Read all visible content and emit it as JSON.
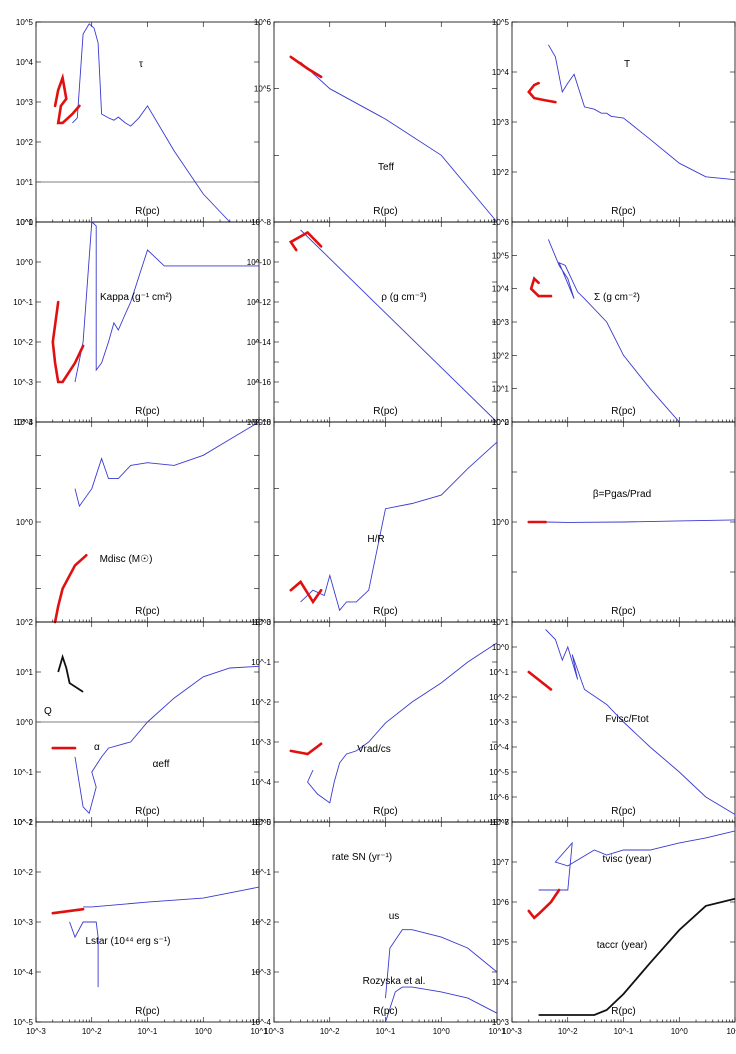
{
  "colors": {
    "model": "#3a3ad0",
    "inner": "#e01010",
    "alt": "#111111"
  },
  "chart_data": [
    {
      "type": "line",
      "panel": "tau",
      "title": "τ",
      "xlabel": "R(pc)",
      "xscale": "log",
      "yscale": "log",
      "ylim": [
        1,
        100000
      ],
      "ytick_labels": [
        "10^5",
        "10^4",
        "10^3",
        "10^2",
        "10^1",
        "10^0"
      ],
      "reference_line": 10,
      "series": [
        {
          "name": "model",
          "color": "blue",
          "x": [
            0.0045,
            0.0055,
            0.007,
            0.009,
            0.011,
            0.013,
            0.015,
            0.02,
            0.025,
            0.03,
            0.04,
            0.05,
            0.07,
            0.1,
            0.3,
            1,
            3
          ],
          "y": [
            300,
            400,
            50000,
            90000,
            70000,
            30000,
            500,
            400,
            350,
            420,
            300,
            250,
            400,
            800,
            60,
            5,
            1
          ]
        },
        {
          "name": "inner",
          "color": "red",
          "x": [
            0.0022,
            0.0025,
            0.003,
            0.0035,
            0.0028,
            0.0025,
            0.003,
            0.0045,
            0.006
          ],
          "y": [
            800,
            2000,
            4000,
            1200,
            800,
            300,
            300,
            500,
            800
          ]
        }
      ]
    },
    {
      "type": "line",
      "panel": "teff",
      "title": "Teff",
      "xlabel": "R(pc)",
      "xscale": "log",
      "yscale": "log",
      "ylim": [
        1000,
        1000000
      ],
      "ytick_labels": [
        "10^6",
        "10^5"
      ],
      "series": [
        {
          "name": "model",
          "color": "blue",
          "x": [
            0.003,
            0.01,
            0.1,
            1,
            10
          ],
          "y": [
            250000,
            100000,
            35000,
            10000,
            1000
          ]
        },
        {
          "name": "inner",
          "color": "red",
          "x": [
            0.002,
            0.004,
            0.007
          ],
          "y": [
            300000,
            200000,
            150000
          ]
        }
      ]
    },
    {
      "type": "line",
      "panel": "T",
      "title": "T",
      "xlabel": "R(pc)",
      "xscale": "log",
      "yscale": "log",
      "ylim": [
        10,
        100000
      ],
      "ytick_labels": [
        "10^5",
        "10^4",
        "10^3",
        "10^2"
      ],
      "series": [
        {
          "name": "model",
          "color": "blue",
          "x": [
            0.0045,
            0.006,
            0.008,
            0.01,
            0.013,
            0.02,
            0.03,
            0.04,
            0.05,
            0.06,
            0.1,
            0.3,
            1,
            3,
            10
          ],
          "y": [
            35000,
            20000,
            4000,
            6000,
            9000,
            2000,
            1800,
            1500,
            1500,
            1300,
            1200,
            450,
            150,
            80,
            70
          ]
        },
        {
          "name": "inner",
          "color": "red",
          "x": [
            0.003,
            0.0025,
            0.002,
            0.0025,
            0.004,
            0.006
          ],
          "y": [
            6000,
            5500,
            4000,
            3000,
            2700,
            2500
          ]
        }
      ]
    },
    {
      "type": "line",
      "panel": "kappa",
      "title": "Kappa (g⁻¹ cm²)",
      "xlabel": "R(pc)",
      "xscale": "log",
      "yscale": "log",
      "ylim": [
        0.0001,
        10
      ],
      "ytick_labels": [
        "10^1",
        "10^0",
        "10^-1",
        "10^-2",
        "10^-3",
        "10^-4"
      ],
      "series": [
        {
          "name": "model",
          "color": "blue",
          "x": [
            0.005,
            0.007,
            0.01,
            0.012,
            0.012,
            0.015,
            0.02,
            0.025,
            0.03,
            0.04,
            0.05,
            0.1,
            0.2,
            0.5,
            1,
            3,
            10
          ],
          "y": [
            0.001,
            0.01,
            10,
            8,
            0.002,
            0.003,
            0.01,
            0.03,
            0.02,
            0.05,
            0.1,
            2,
            0.8,
            0.8,
            0.8,
            0.8,
            0.8
          ]
        },
        {
          "name": "inner",
          "color": "red",
          "x": [
            0.0025,
            0.002,
            0.0022,
            0.0025,
            0.003,
            0.005,
            0.007
          ],
          "y": [
            0.1,
            0.01,
            0.003,
            0.001,
            0.001,
            0.003,
            0.008
          ]
        }
      ]
    },
    {
      "type": "line",
      "panel": "rho",
      "title": "ρ (g cm⁻³)",
      "xlabel": "R(pc)",
      "xscale": "log",
      "yscale": "log",
      "ylim": [
        1e-18,
        1e-08
      ],
      "ytick_labels": [
        "10^-8",
        "10^-10",
        "10^-12",
        "10^-14",
        "10^-16",
        "10^-18"
      ],
      "series": [
        {
          "name": "model",
          "color": "blue",
          "x": [
            0.003,
            10
          ],
          "y": [
            4e-09,
            1e-18
          ]
        },
        {
          "name": "inner",
          "color": "red",
          "x": [
            0.0025,
            0.002,
            0.004,
            0.007
          ],
          "y": [
            4e-10,
            1e-09,
            3e-09,
            6e-10
          ]
        }
      ]
    },
    {
      "type": "line",
      "panel": "sigma",
      "title": "Σ (g cm⁻²)",
      "xlabel": "R(pc)",
      "xscale": "log",
      "yscale": "log",
      "ylim": [
        1,
        1000000
      ],
      "ytick_labels": [
        "10^6",
        "10^5",
        "10^4",
        "10^3",
        "10^2",
        "10^1",
        "10^0"
      ],
      "series": [
        {
          "name": "model",
          "color": "blue",
          "x": [
            0.0045,
            0.007,
            0.01,
            0.013,
            0.007,
            0.009,
            0.015,
            0.02,
            0.05,
            0.1,
            0.3,
            1,
            2
          ],
          "y": [
            300000,
            50000,
            20000,
            5000,
            60000,
            50000,
            8000,
            5000,
            1000,
            100,
            10,
            1,
            0.5
          ]
        },
        {
          "name": "inner",
          "color": "red",
          "x": [
            0.003,
            0.0025,
            0.0022,
            0.003,
            0.0045,
            0.005
          ],
          "y": [
            15000,
            20000,
            10000,
            6000,
            6000,
            6000
          ]
        }
      ]
    },
    {
      "type": "line",
      "panel": "mdisc",
      "title": "Mdisc (M☉)",
      "xlabel": "R(pc)",
      "xscale": "log",
      "yscale": "log",
      "ylim": [
        0.001,
        1000
      ],
      "ytick_labels": [
        "10^3",
        "10^0"
      ],
      "series": [
        {
          "name": "model",
          "color": "blue",
          "x": [
            0.005,
            0.006,
            0.01,
            0.015,
            0.02,
            0.03,
            0.05,
            0.1,
            0.3,
            1,
            3,
            10
          ],
          "y": [
            10,
            3,
            10,
            80,
            20,
            20,
            50,
            60,
            50,
            100,
            300,
            1000
          ]
        },
        {
          "name": "inner",
          "color": "red",
          "x": [
            0.0022,
            0.0025,
            0.003,
            0.005,
            0.008
          ],
          "y": [
            0.001,
            0.003,
            0.01,
            0.05,
            0.1
          ]
        }
      ]
    },
    {
      "type": "line",
      "panel": "H/R",
      "title": "H/R",
      "xlabel": "R(pc)",
      "xscale": "log",
      "yscale": "log",
      "ylim": [
        0.001,
        1
      ],
      "ytick_labels": [
        "10^0",
        "10^-3"
      ],
      "series": [
        {
          "name": "model",
          "color": "blue",
          "x": [
            0.003,
            0.005,
            0.008,
            0.01,
            0.015,
            0.02,
            0.03,
            0.05,
            0.1,
            0.3,
            1,
            3,
            10
          ],
          "y": [
            0.002,
            0.003,
            0.0025,
            0.005,
            0.0015,
            0.002,
            0.002,
            0.003,
            0.05,
            0.06,
            0.08,
            0.2,
            0.5
          ]
        },
        {
          "name": "inner",
          "color": "red",
          "x": [
            0.002,
            0.003,
            0.005,
            0.007
          ],
          "y": [
            0.003,
            0.004,
            0.002,
            0.003
          ]
        }
      ]
    },
    {
      "type": "line",
      "panel": "beta",
      "title": "β=Pgas/Prad",
      "xlabel": "R(pc)",
      "xscale": "log",
      "yscale": "log",
      "ylim": [
        0.01,
        100
      ],
      "ytick_labels": [
        "10^2",
        "10^0"
      ],
      "series": [
        {
          "name": "model",
          "color": "blue",
          "x": [
            0.004,
            0.01,
            0.1,
            1,
            10
          ],
          "y": [
            1,
            0.98,
            1,
            1.05,
            1.1
          ]
        },
        {
          "name": "inner",
          "color": "red",
          "x": [
            0.002,
            0.004
          ],
          "y": [
            1,
            1
          ]
        }
      ]
    },
    {
      "type": "line",
      "panel": "Q",
      "title": "αeff",
      "xlabel": "R(pc)",
      "xscale": "log",
      "yscale": "log",
      "ylim": [
        0.01,
        100
      ],
      "ytick_labels": [
        "10^2",
        "10^1",
        "10^0",
        "10^-1",
        "10^-2"
      ],
      "reference_line": 1,
      "annotations": [
        "Q",
        "α"
      ],
      "series": [
        {
          "name": "alpha_eff",
          "color": "blue",
          "x": [
            0.005,
            0.007,
            0.009,
            0.012,
            0.01,
            0.015,
            0.02,
            0.05,
            0.1,
            0.3,
            1,
            3,
            10
          ],
          "y": [
            0.2,
            0.02,
            0.015,
            0.05,
            0.1,
            0.2,
            0.3,
            0.4,
            1,
            3,
            8,
            12,
            13
          ]
        },
        {
          "name": "alpha",
          "color": "red",
          "x": [
            0.002,
            0.005
          ],
          "y": [
            0.3,
            0.3
          ]
        },
        {
          "name": "Q",
          "color": "black",
          "x": [
            0.0025,
            0.003,
            0.0035,
            0.004,
            0.007
          ],
          "y": [
            10,
            20,
            12,
            6,
            4
          ]
        }
      ]
    },
    {
      "type": "line",
      "panel": "vrad",
      "title": "Vrad/cs",
      "xlabel": "R(pc)",
      "xscale": "log",
      "yscale": "log",
      "ylim": [
        1e-05,
        1
      ],
      "ytick_labels": [
        "10^0",
        "10^-1",
        "10^-2",
        "10^-3",
        "10^-4",
        "10^-5"
      ],
      "series": [
        {
          "name": "model",
          "color": "blue",
          "x": [
            0.005,
            0.004,
            0.006,
            0.01,
            0.012,
            0.015,
            0.02,
            0.03,
            0.05,
            0.1,
            0.3,
            1,
            3,
            10
          ],
          "y": [
            0.0002,
            0.0001,
            5e-05,
            3e-05,
            0.0001,
            0.0003,
            0.0005,
            0.0006,
            0.001,
            0.003,
            0.01,
            0.03,
            0.1,
            0.3
          ]
        },
        {
          "name": "inner",
          "color": "red",
          "x": [
            0.002,
            0.004,
            0.007
          ],
          "y": [
            0.0006,
            0.0005,
            0.0009
          ]
        }
      ]
    },
    {
      "type": "line",
      "panel": "fvisc",
      "title": "Fvisc/Ftot",
      "xlabel": "R(pc)",
      "xscale": "log",
      "yscale": "log",
      "ylim": [
        1e-07,
        10
      ],
      "ytick_labels": [
        "10^1",
        "10^0",
        "10^-1",
        "10^-2",
        "10^-3",
        "10^-4",
        "10^-5",
        "10^-6",
        "10^-7"
      ],
      "series": [
        {
          "name": "model",
          "color": "blue",
          "x": [
            0.004,
            0.006,
            0.008,
            0.01,
            0.015,
            0.012,
            0.02,
            0.05,
            0.1,
            0.3,
            1,
            3,
            10
          ],
          "y": [
            5,
            2,
            0.3,
            1,
            0.05,
            0.5,
            0.02,
            0.005,
            0.001,
            0.0001,
            1e-05,
            1e-06,
            2e-07
          ]
        },
        {
          "name": "inner",
          "color": "red",
          "x": [
            0.002,
            0.005
          ],
          "y": [
            0.1,
            0.02
          ]
        }
      ]
    },
    {
      "type": "line",
      "panel": "lstar",
      "title": "Lstar (10⁴⁴ erg s⁻¹)",
      "xlabel": "R(pc)",
      "xscale": "log",
      "yscale": "log",
      "ylim": [
        1e-05,
        0.1
      ],
      "ytick_labels": [
        "10^-1",
        "10^-2",
        "10^-3",
        "10^-4",
        "10^-5"
      ],
      "series": [
        {
          "name": "model",
          "color": "blue",
          "x": [
            0.007,
            0.01,
            0.1,
            1,
            10
          ],
          "y": [
            0.002,
            0.002,
            0.0025,
            0.003,
            0.005
          ]
        },
        {
          "name": "dip",
          "color": "blue",
          "x": [
            0.004,
            0.005,
            0.007,
            0.012,
            0.013,
            0.013
          ],
          "y": [
            0.001,
            0.0005,
            0.001,
            0.001,
            0.0005,
            5e-05
          ]
        },
        {
          "name": "inner",
          "color": "red",
          "x": [
            0.002,
            0.007
          ],
          "y": [
            0.0015,
            0.0018
          ]
        }
      ]
    },
    {
      "type": "line",
      "panel": "sn",
      "title": "rate SN (yr⁻¹)",
      "xlabel": "R(pc)",
      "xscale": "log",
      "yscale": "log",
      "ylim": [
        0.0001,
        1
      ],
      "ytick_labels": [
        "10^0",
        "10^-1",
        "10^-2",
        "10^-3",
        "10^-4"
      ],
      "annotations": [
        "us",
        "Rozyska et al."
      ],
      "series": [
        {
          "name": "us",
          "color": "blue",
          "x": [
            0.1,
            0.12,
            0.2,
            0.3,
            1,
            3,
            10
          ],
          "y": [
            0.0003,
            0.003,
            0.007,
            0.007,
            0.005,
            0.003,
            0.001
          ]
        },
        {
          "name": "Rozyska et al.",
          "color": "blue",
          "x": [
            0.1,
            0.15,
            0.2,
            0.3,
            1,
            3,
            10
          ],
          "y": [
            0.0001,
            0.0004,
            0.0005,
            0.0005,
            0.0004,
            0.0003,
            0.00015
          ]
        }
      ]
    },
    {
      "type": "line",
      "panel": "times",
      "title": "tvisc (year)",
      "xlabel": "R(pc)",
      "xscale": "log",
      "yscale": "log",
      "ylim": [
        1000,
        100000000
      ],
      "ytick_labels": [
        "10^8",
        "10^7",
        "10^6",
        "10^5",
        "10^4",
        "10^3"
      ],
      "xtick_labels": [
        "10^-3",
        "10^-2",
        "10^-1",
        "10^0",
        "10^1"
      ],
      "annotations": [
        "tvisc (year)",
        "taccr (year)"
      ],
      "series": [
        {
          "name": "tvisc",
          "color": "blue",
          "x": [
            0.003,
            0.01,
            0.012,
            0.006,
            0.01,
            0.03,
            0.05,
            0.1,
            0.3,
            1,
            3,
            10
          ],
          "y": [
            2000000,
            2000000,
            30000000,
            10000000,
            8000000,
            20000000,
            15000000,
            20000000,
            20000000,
            30000000,
            40000000,
            60000000
          ]
        },
        {
          "name": "inner",
          "color": "red",
          "x": [
            0.002,
            0.0025,
            0.003,
            0.005,
            0.007
          ],
          "y": [
            600000,
            400000,
            500000,
            1000000,
            2000000
          ]
        },
        {
          "name": "taccr",
          "color": "black",
          "x": [
            0.003,
            0.03,
            0.05,
            0.1,
            0.3,
            1,
            3,
            10
          ],
          "y": [
            1500,
            1500,
            2000,
            5000,
            30000,
            200000,
            800000,
            1200000
          ]
        }
      ]
    }
  ]
}
